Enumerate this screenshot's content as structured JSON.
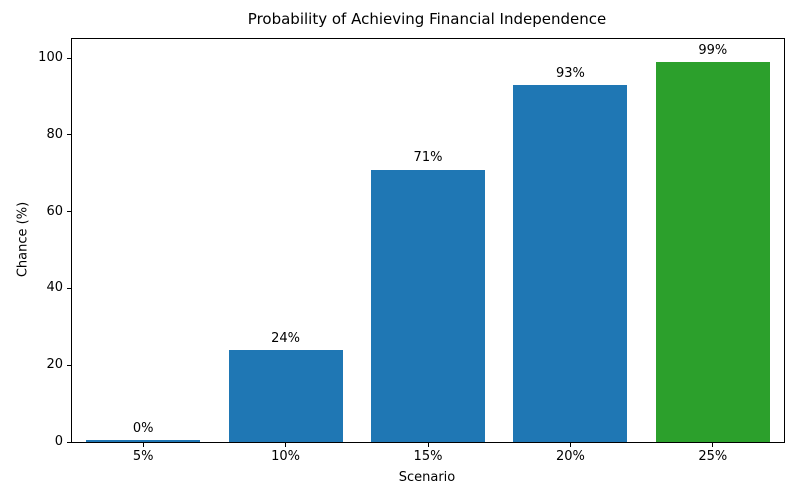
{
  "chart_data": {
    "type": "bar",
    "title": "Probability of Achieving Financial Independence",
    "xlabel": "Scenario",
    "ylabel": "Chance (%)",
    "categories": [
      "5%",
      "10%",
      "15%",
      "20%",
      "25%"
    ],
    "values": [
      0,
      24,
      71,
      93,
      99
    ],
    "bar_labels": [
      "0%",
      "24%",
      "71%",
      "93%",
      "99%"
    ],
    "bar_colors": [
      "#1f77b4",
      "#1f77b4",
      "#1f77b4",
      "#1f77b4",
      "#2ca02c"
    ],
    "yticks": [
      0,
      20,
      40,
      60,
      80,
      100
    ],
    "ylim": [
      0,
      105
    ],
    "bar_width_fraction": 0.8,
    "grid": false,
    "legend": "none",
    "axis_color": "#000000",
    "background_color": "#ffffff"
  }
}
